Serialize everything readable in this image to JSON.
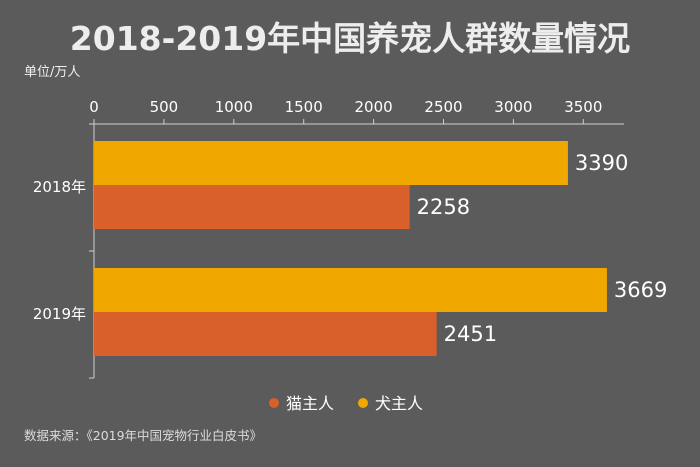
{
  "chart_data": {
    "type": "bar",
    "orientation": "horizontal",
    "title": "2018-2019年中国养宠人群数量情况",
    "unit_label": "单位/万人",
    "categories": [
      "2018年",
      "2019年"
    ],
    "series": [
      {
        "name": "犬主人",
        "values": [
          3390,
          3669
        ],
        "color": "#f0a800"
      },
      {
        "name": "猫主人",
        "values": [
          2258,
          2451
        ],
        "color": "#d95f2b"
      }
    ],
    "xlim": [
      0,
      3800
    ],
    "xticks": [
      "0",
      "500",
      "1000",
      "1500",
      "2000",
      "2500",
      "3000",
      "3500"
    ],
    "xtick_values": [
      0,
      500,
      1000,
      1500,
      2000,
      2500,
      3000,
      3500
    ],
    "x_axis_position": "top",
    "legend_position": "bottom",
    "legend": [
      {
        "name": "猫主人",
        "color": "#d95f2b"
      },
      {
        "name": "犬主人",
        "color": "#f0a800"
      }
    ],
    "source": "数据来源：《2019年中国宠物行业白皮书》",
    "grid": false
  }
}
